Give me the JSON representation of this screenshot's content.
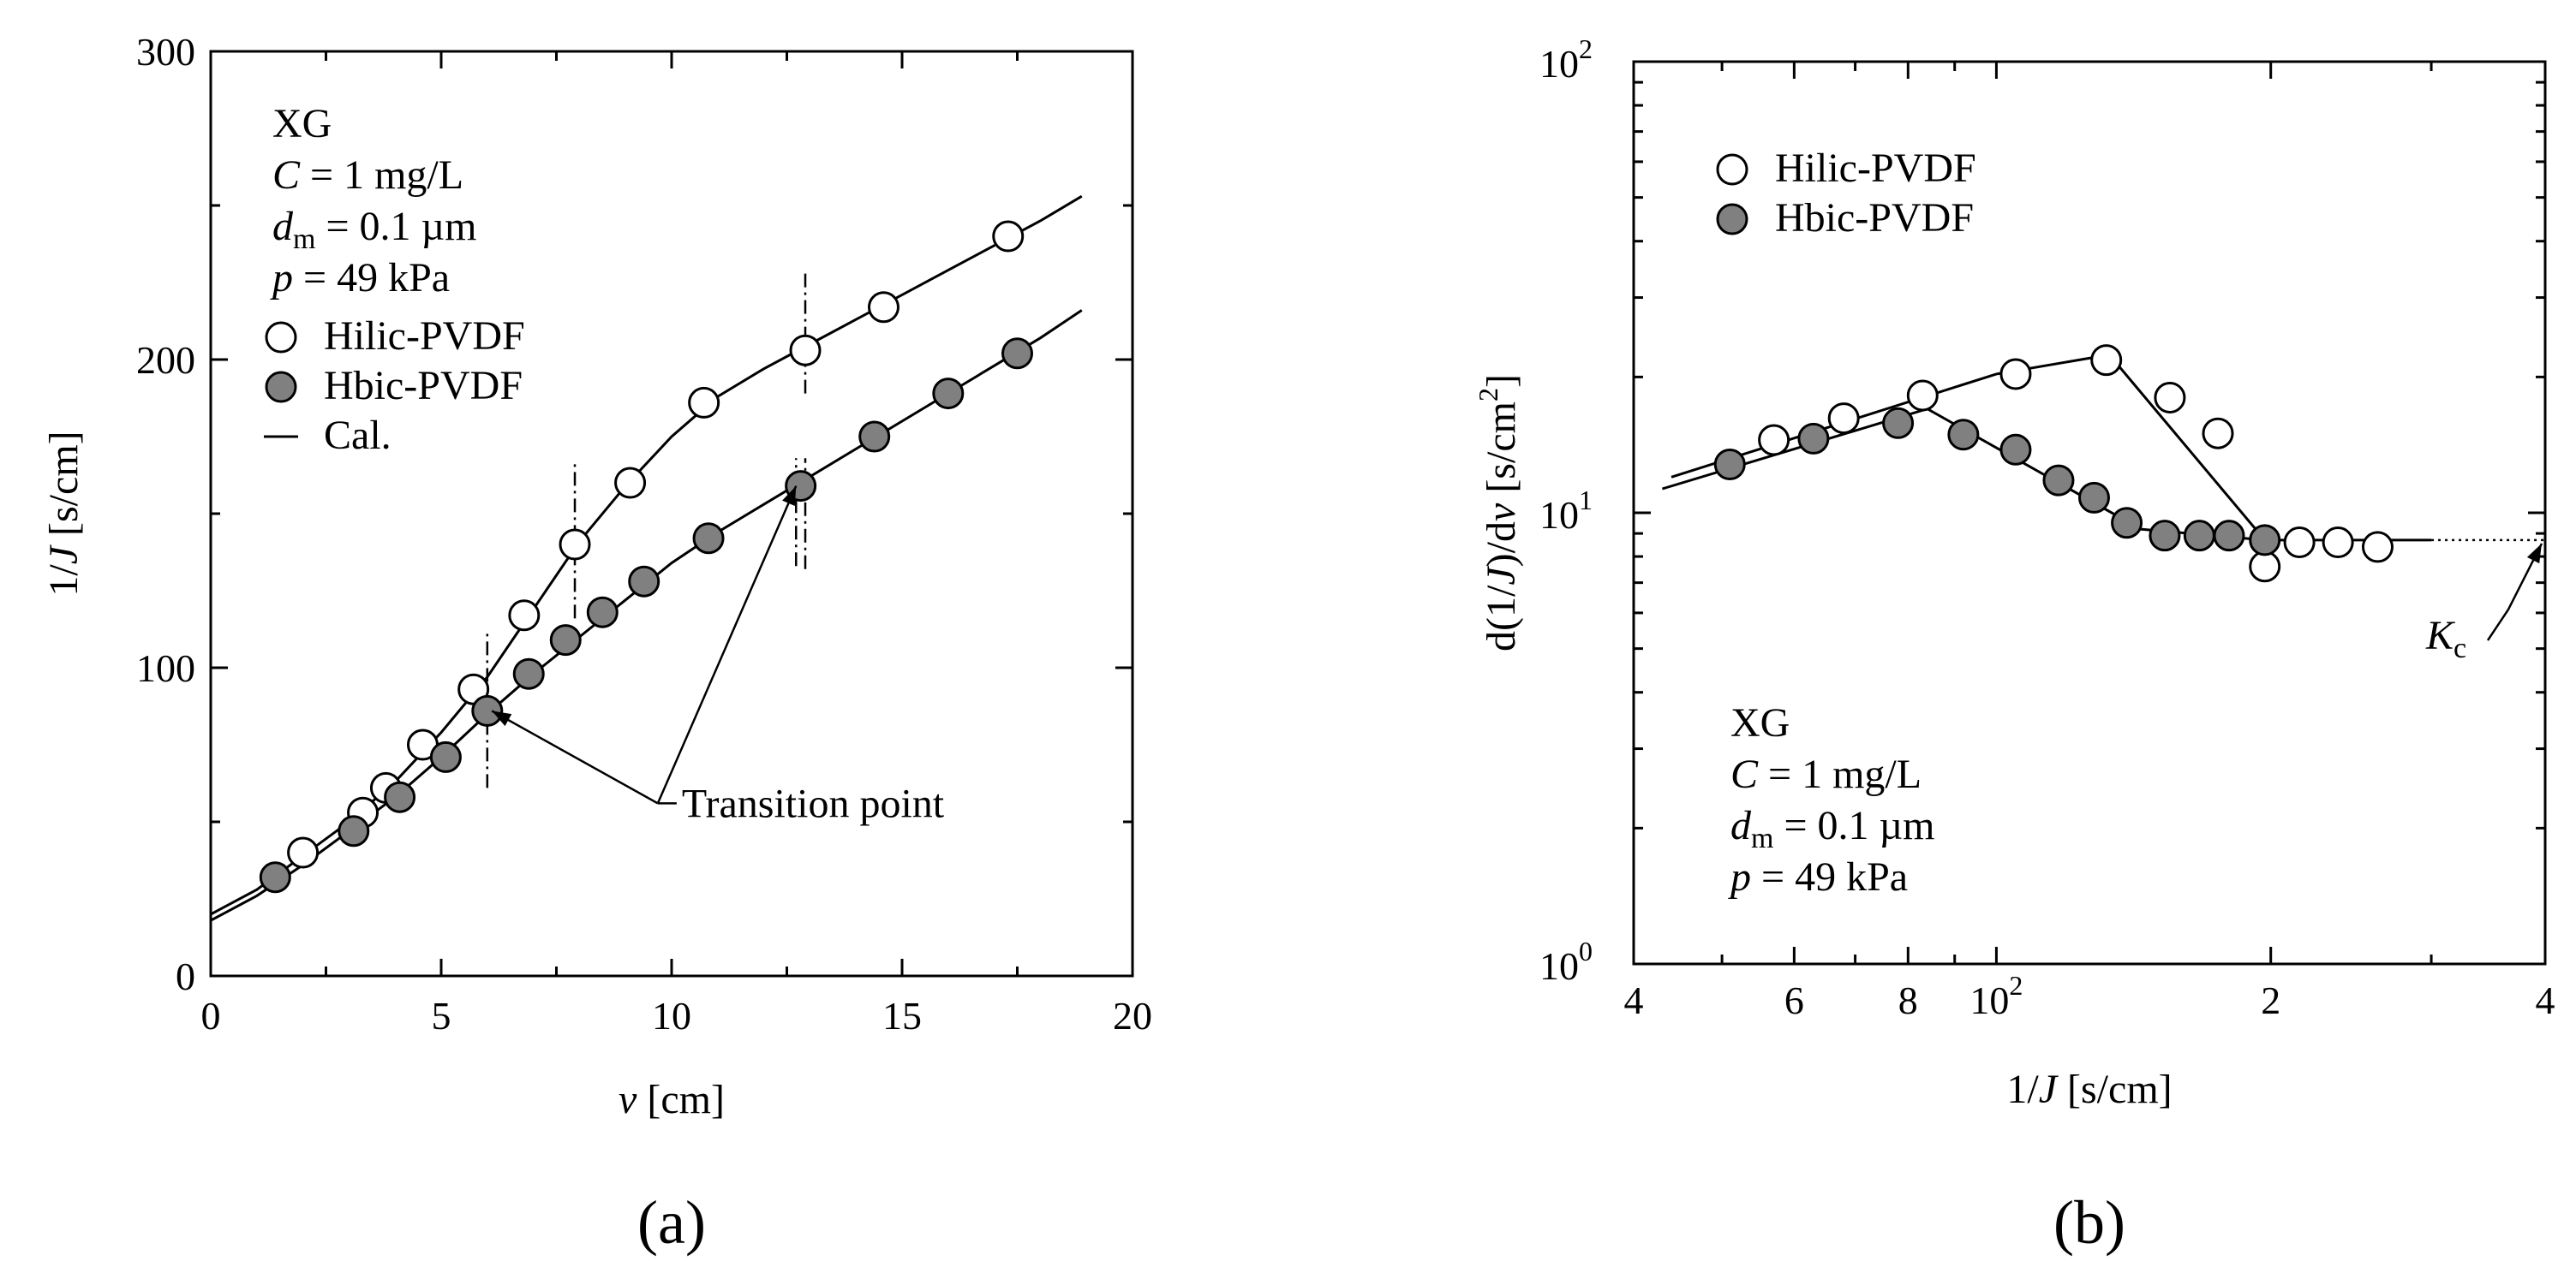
{
  "colors": {
    "axis": "#000000",
    "open_marker_fill": "#ffffff",
    "filled_marker_fill": "#808080"
  },
  "chart_data": [
    {
      "type": "scatter",
      "panel_label": "(a)",
      "xlabel": {
        "italic": "v",
        "rest": "  [cm]"
      },
      "ylabel": {
        "pre": "1/",
        "italic": "J",
        "rest": "  [s/cm]"
      },
      "xlim": [
        0,
        20
      ],
      "ylim": [
        0,
        300
      ],
      "x_ticks": [
        0,
        5,
        10,
        15,
        20
      ],
      "y_ticks": [
        0,
        100,
        200,
        300
      ],
      "x_tick_labels": [
        "0",
        "5",
        "10",
        "15",
        "20"
      ],
      "y_tick_labels": [
        "0",
        "100",
        "200",
        "300"
      ],
      "annotation_lines": [
        {
          "italic": "",
          "sub": "",
          "rest": "XG"
        },
        {
          "italic": "C",
          "sub": "",
          "rest": " = 1 mg/L"
        },
        {
          "italic": "d",
          "sub": "m",
          "rest": " = 0.1 µm"
        },
        {
          "italic": "p",
          "sub": "",
          "rest": " = 49 kPa"
        }
      ],
      "legend": [
        {
          "label": "Hilic-PVDF",
          "marker": "open"
        },
        {
          "label": "Hbic-PVDF",
          "marker": "filled"
        },
        {
          "label": "Cal.",
          "marker": "line"
        }
      ],
      "callout": {
        "text": "Transition point",
        "anchor": [
          9.7,
          56
        ],
        "targets": [
          [
            6.1,
            86
          ],
          [
            12.7,
            159
          ]
        ]
      },
      "transition_marks_x": [
        6.0,
        7.9,
        12.9
      ],
      "series": [
        {
          "name": "Hilic-PVDF",
          "marker": "open",
          "x": [
            2.0,
            3.3,
            3.8,
            4.6,
            5.7,
            6.8,
            7.9,
            9.1,
            10.7,
            12.9,
            14.6,
            17.3
          ],
          "y": [
            40,
            53,
            61,
            75,
            93,
            117,
            140,
            160,
            186,
            203,
            217,
            240
          ]
        },
        {
          "name": "Hbic-PVDF",
          "marker": "filled",
          "x": [
            1.4,
            3.1,
            4.1,
            5.1,
            6.0,
            6.9,
            7.7,
            8.5,
            9.4,
            10.8,
            12.8,
            14.4,
            16.0,
            17.5
          ],
          "y": [
            32,
            47,
            58,
            71,
            86,
            98,
            109,
            118,
            128,
            142,
            159,
            175,
            189,
            202
          ]
        }
      ],
      "calc_curves": [
        {
          "name": "Cal. Hilic-PVDF",
          "x": [
            0,
            1,
            2,
            3,
            4,
            5,
            6,
            7,
            8,
            9,
            10,
            11,
            12,
            13,
            14,
            15,
            16,
            17,
            18,
            18.9
          ],
          "y": [
            20,
            28,
            39,
            50,
            63,
            79,
            97,
            119,
            141,
            159,
            175,
            188,
            197,
            205,
            213,
            221,
            229,
            237,
            245,
            253
          ]
        },
        {
          "name": "Cal. Hbic-PVDF",
          "x": [
            0,
            1,
            2,
            3,
            4,
            5,
            6,
            7,
            8,
            9,
            10,
            11,
            12,
            13,
            14,
            15,
            16,
            17,
            18,
            18.9
          ],
          "y": [
            18,
            26,
            36,
            47,
            58,
            71,
            85,
            98,
            110,
            122,
            134,
            144,
            153,
            162,
            171,
            180,
            189,
            198,
            207,
            216
          ]
        }
      ]
    },
    {
      "type": "scatter",
      "panel_label": "(b)",
      "xlabel": {
        "pre": "1/",
        "italic": "J",
        "rest": "  [s/cm]"
      },
      "ylabel": {
        "pre": "d(1/",
        "italic": "J",
        "mid": ")/d",
        "italic2": "v",
        "rest": "  [s/cm",
        "sup": "2",
        "end": "]"
      },
      "x_scale": "log",
      "y_scale": "log",
      "xlim": [
        40,
        400
      ],
      "ylim": [
        1,
        100
      ],
      "x_tick_labels": [
        {
          "value": 40,
          "label": "4"
        },
        {
          "value": 60,
          "label": "6"
        },
        {
          "value": 80,
          "label": "8"
        },
        {
          "value": 100,
          "label": "10",
          "sup": "2"
        },
        {
          "value": 200,
          "label": "2"
        },
        {
          "value": 400,
          "label": "4"
        }
      ],
      "y_tick_labels": [
        {
          "value": 1,
          "label": "10",
          "sup": "0"
        },
        {
          "value": 10,
          "label": "10",
          "sup": "1"
        },
        {
          "value": 100,
          "label": "10",
          "sup": "2"
        }
      ],
      "annotation_lines": [
        {
          "italic": "",
          "sub": "",
          "rest": "XG"
        },
        {
          "italic": "C",
          "sub": "",
          "rest": " = 1 mg/L"
        },
        {
          "italic": "d",
          "sub": "m",
          "rest": " = 0.1 µm"
        },
        {
          "italic": "p",
          "sub": "",
          "rest": " = 49 kPa"
        }
      ],
      "legend": [
        {
          "label": "Hilic-PVDF",
          "marker": "open"
        },
        {
          "label": "Hbic-PVDF",
          "marker": "filled"
        }
      ],
      "kc_label": {
        "italic": "K",
        "sub": "c"
      },
      "kc_value": 8.7,
      "series": [
        {
          "name": "Hilic-PVDF",
          "marker": "open",
          "x": [
            57,
            68,
            83,
            105,
            132,
            155,
            175,
            197,
            215,
            237,
            262
          ],
          "y": [
            14.5,
            16.2,
            18.2,
            20.3,
            21.8,
            18.0,
            15.0,
            7.6,
            8.6,
            8.6,
            8.4
          ]
        },
        {
          "name": "Hbic-PVDF",
          "marker": "filled",
          "x": [
            51,
            63,
            78,
            92,
            105,
            117,
            128,
            139,
            153,
            167,
            180,
            197
          ],
          "y": [
            12.8,
            14.6,
            15.8,
            14.9,
            13.8,
            11.8,
            10.8,
            9.5,
            8.9,
            8.9,
            8.9,
            8.7
          ]
        }
      ],
      "calc_curves": [
        {
          "name": "Cal. Hilic-PVDF",
          "x": [
            44,
            100,
            133,
            197,
            300
          ],
          "y": [
            12.0,
            20.3,
            22.4,
            8.7,
            8.7
          ]
        },
        {
          "name": "Cal. Hbic-PVDF",
          "x": [
            43,
            84,
            144,
            197
          ],
          "y": [
            11.3,
            17.0,
            9.2,
            8.7
          ]
        }
      ],
      "kc_dotted_x": [
        300,
        400
      ]
    }
  ]
}
